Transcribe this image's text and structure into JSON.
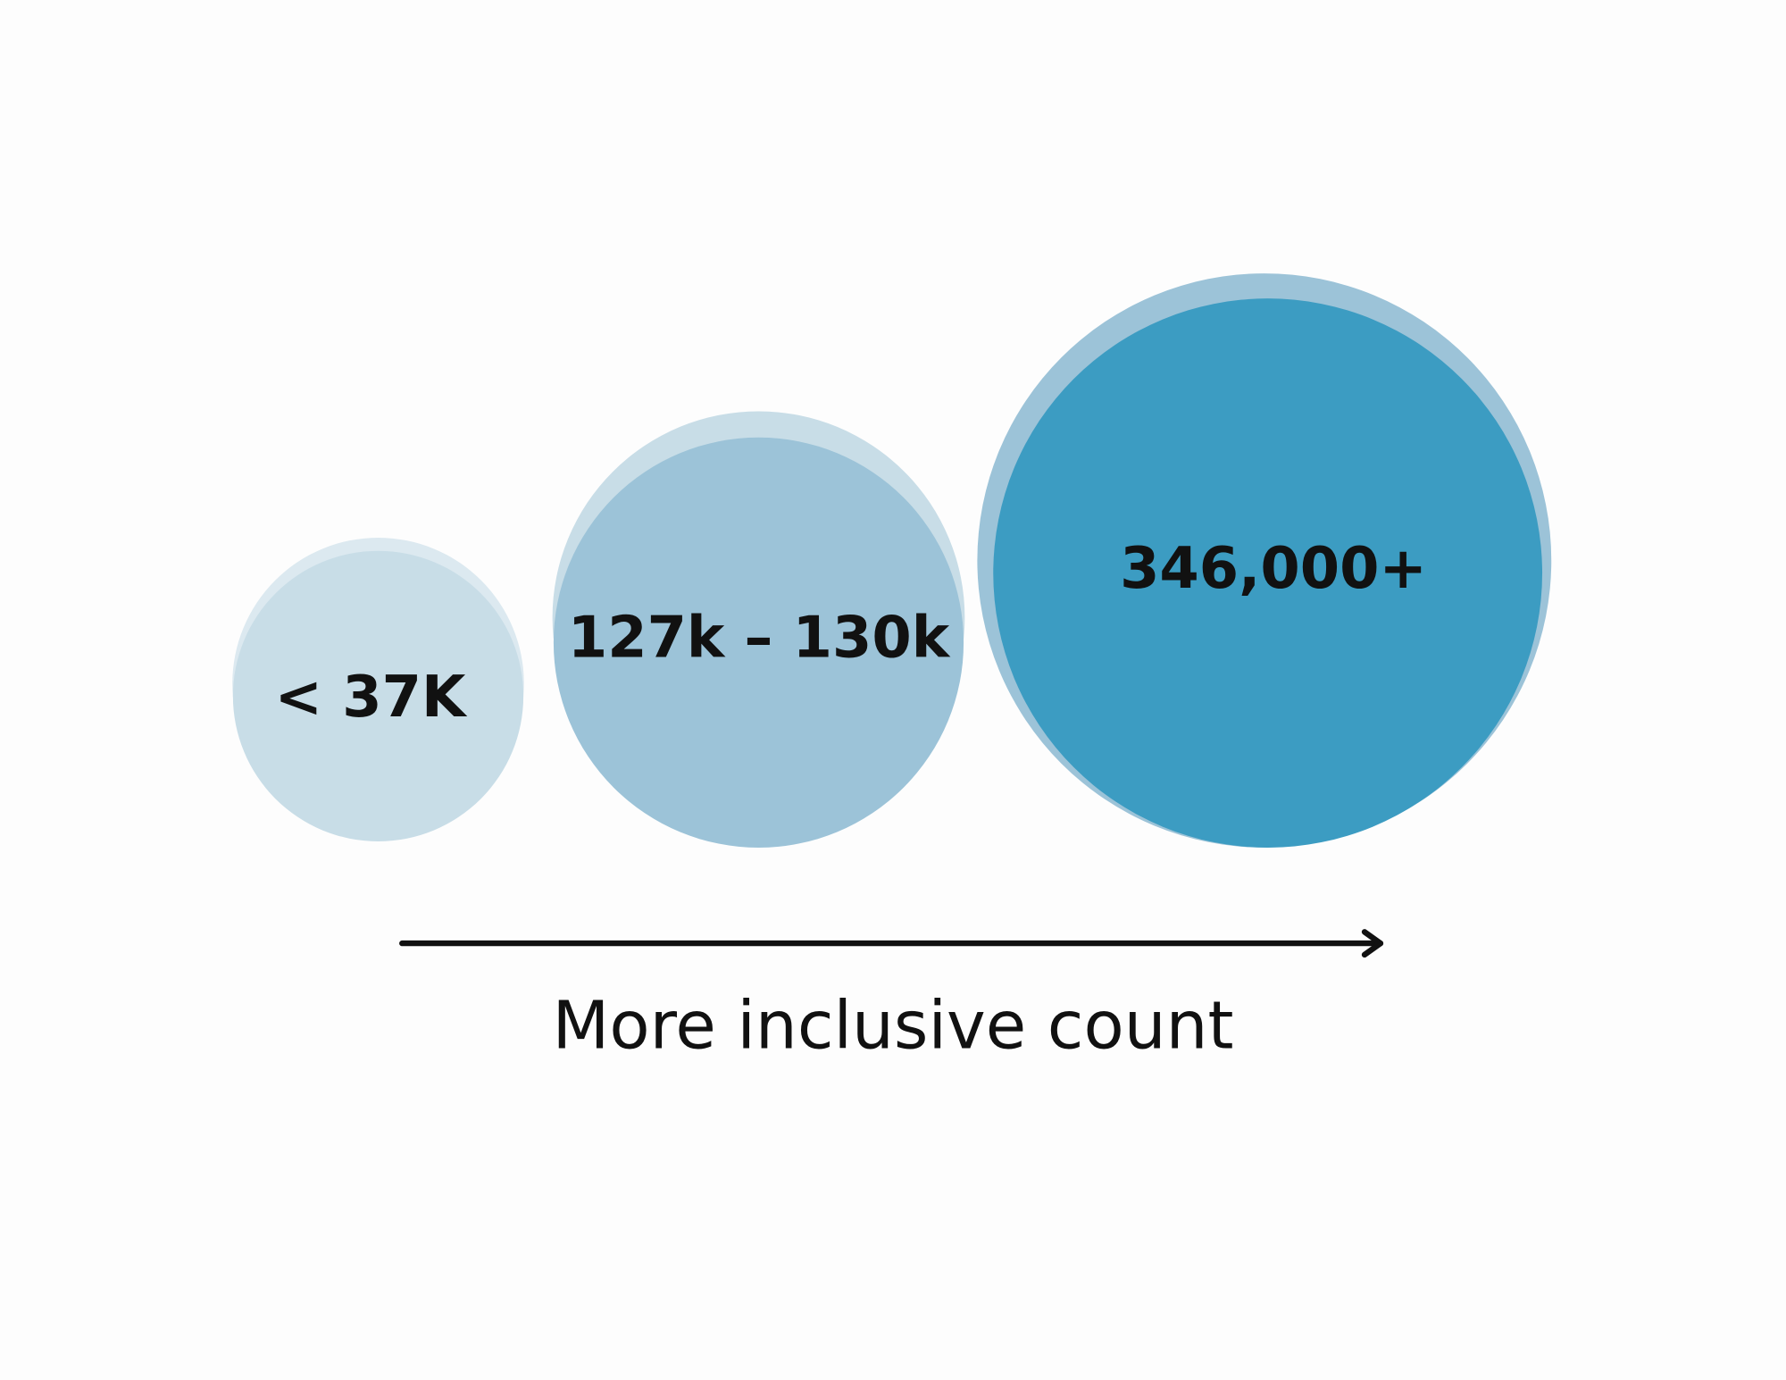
{
  "nodes": [
    {
      "label": "< 37K"
    },
    {
      "label": "127k – 130k"
    },
    {
      "label": "346,000+"
    }
  ],
  "arrow": {
    "label": "More inclusive count"
  }
}
